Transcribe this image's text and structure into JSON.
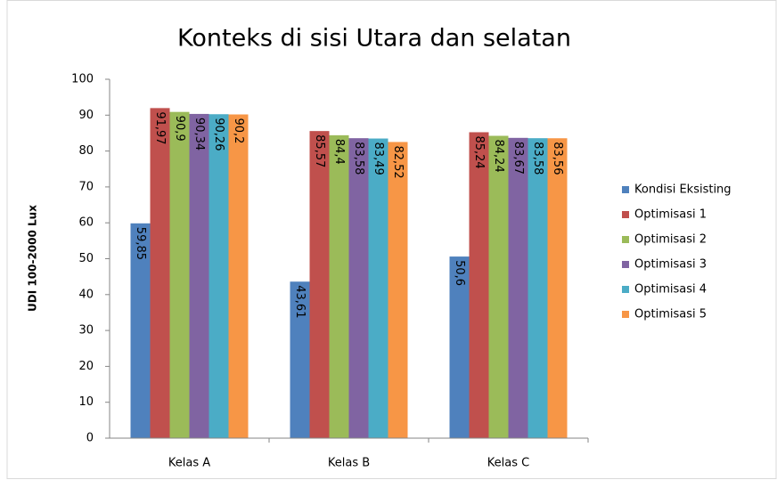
{
  "chart_data": {
    "type": "bar",
    "title": "Konteks di sisi Utara dan selatan",
    "y_label": "UDI 100-2000 Lux",
    "categories": [
      "Kelas A",
      "Kelas B",
      "Kelas C"
    ],
    "series": [
      {
        "name": "Kondisi Eksisting",
        "color": "#4f81bd",
        "values": [
          59.85,
          43.61,
          50.6
        ],
        "value_labels": [
          "59,85",
          "43,61",
          "50,6"
        ]
      },
      {
        "name": "Optimisasi 1",
        "color": "#c0504d",
        "values": [
          91.97,
          85.57,
          85.24
        ],
        "value_labels": [
          "91,97",
          "85,57",
          "85,24"
        ]
      },
      {
        "name": "Optimisasi 2",
        "color": "#9bbb59",
        "values": [
          90.9,
          84.4,
          84.24
        ],
        "value_labels": [
          "90,9",
          "84,4",
          "84,24"
        ]
      },
      {
        "name": "Optimisasi 3",
        "color": "#8064a2",
        "values": [
          90.34,
          83.58,
          83.67
        ],
        "value_labels": [
          "90,34",
          "83,58",
          "83,67"
        ]
      },
      {
        "name": "Optimisasi 4",
        "color": "#4bacc6",
        "values": [
          90.26,
          83.49,
          83.58
        ],
        "value_labels": [
          "90,26",
          "83,49",
          "83,58"
        ]
      },
      {
        "name": "Optimisasi 5",
        "color": "#f79646",
        "values": [
          90.2,
          82.52,
          83.56
        ],
        "value_labels": [
          "90,2",
          "82,52",
          "83,56"
        ]
      }
    ],
    "ylim": [
      0,
      100
    ],
    "yticks": [
      0,
      10,
      20,
      30,
      40,
      50,
      60,
      70,
      80,
      90,
      100
    ],
    "grid": false,
    "legend": "right"
  }
}
